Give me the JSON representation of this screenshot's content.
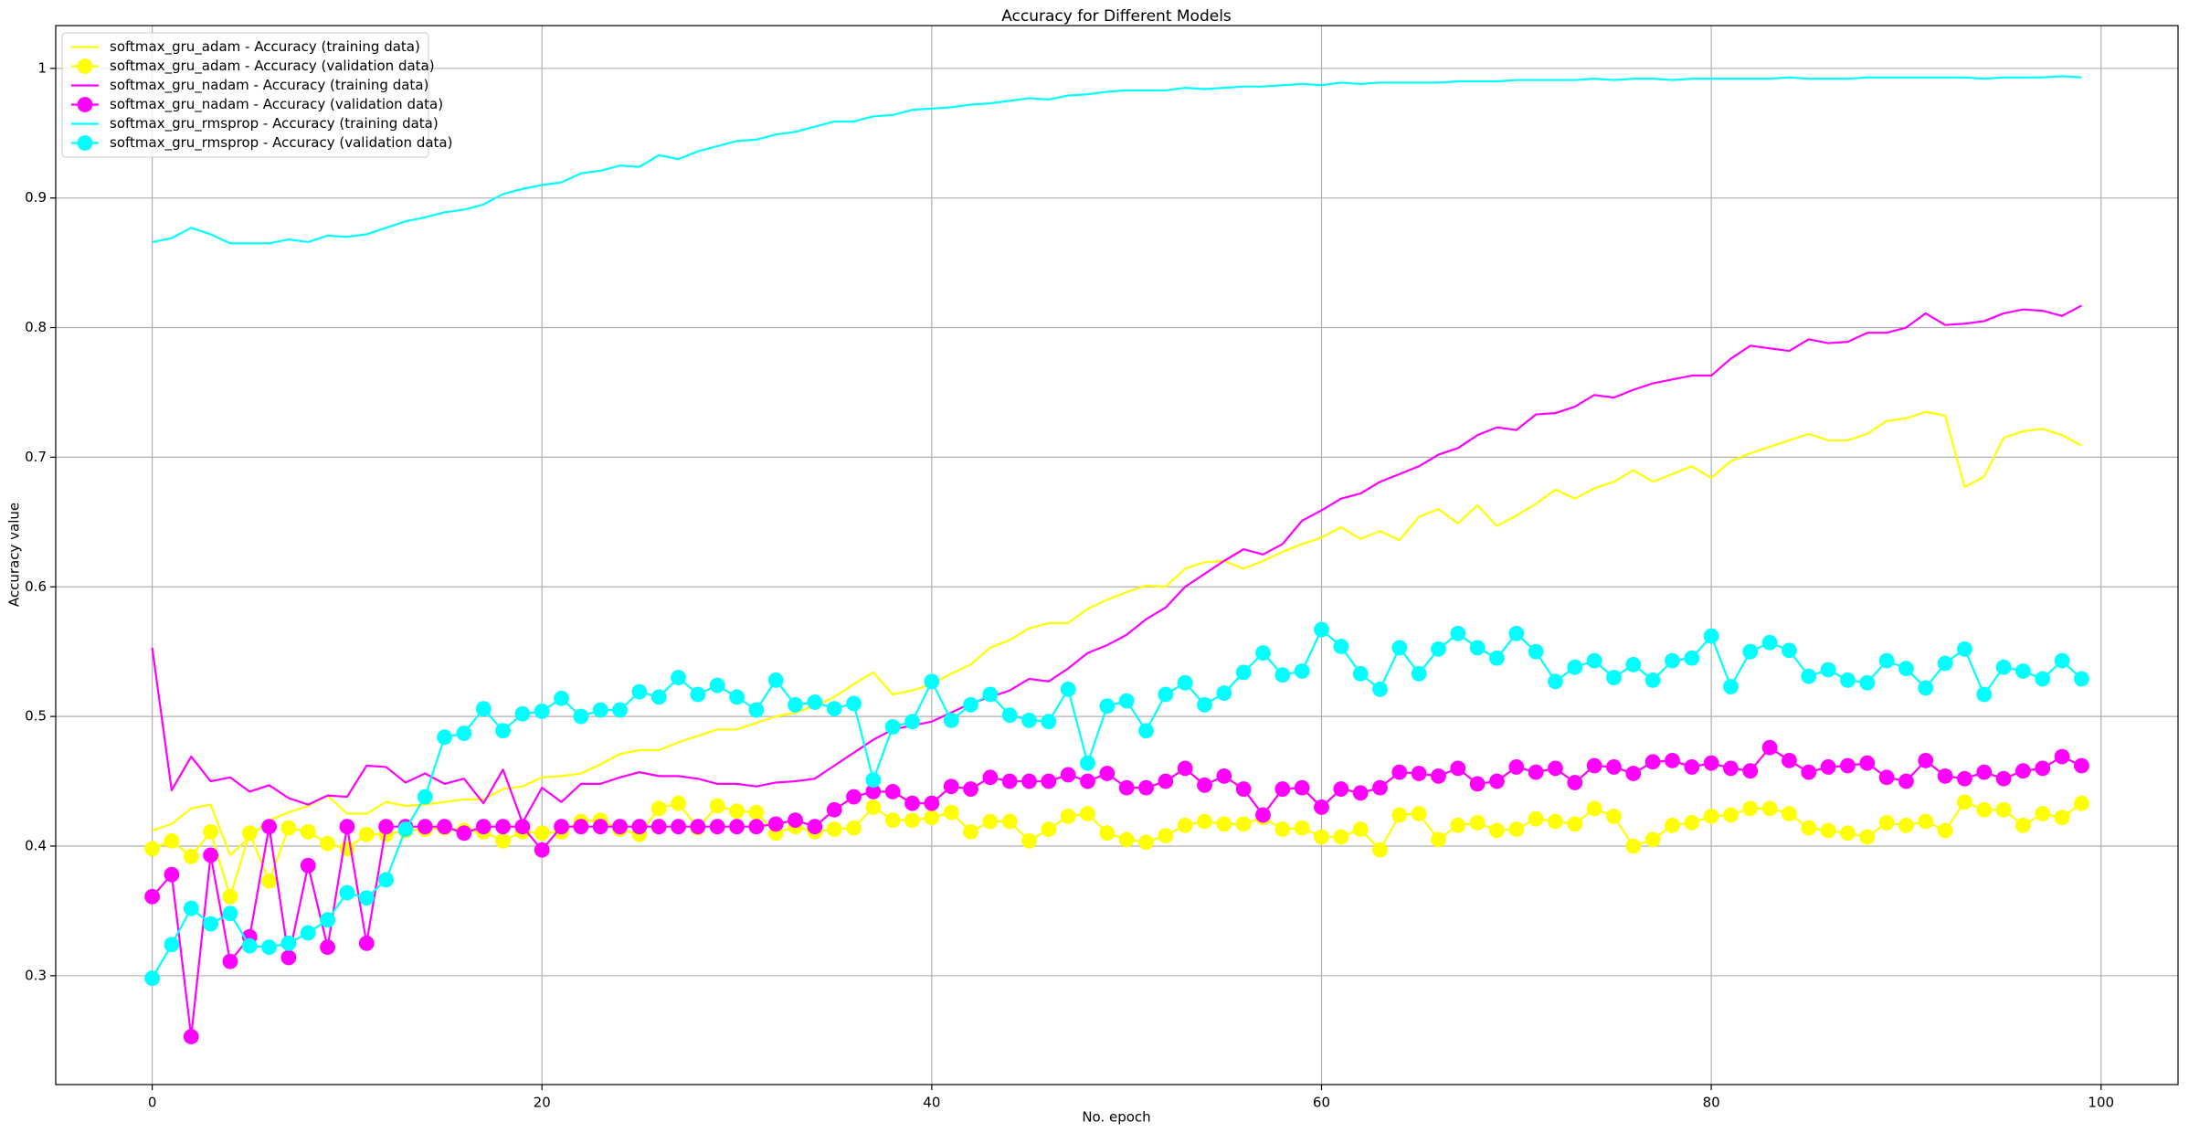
{
  "chart_data": {
    "type": "line",
    "title": "Accuracy for Different Models",
    "xlabel": "No. epoch",
    "ylabel": "Accuracy value",
    "xlim": [
      -4.95,
      103.95
    ],
    "ylim": [
      0.216,
      1.033
    ],
    "xticks": [
      0,
      20,
      40,
      60,
      80,
      100
    ],
    "yticks": [
      0.3,
      0.4,
      0.5,
      0.6,
      0.7,
      0.8,
      0.9,
      1.0
    ],
    "grid": true,
    "legend": "upper left",
    "x": [
      0,
      1,
      2,
      3,
      4,
      5,
      6,
      7,
      8,
      9,
      10,
      11,
      12,
      13,
      14,
      15,
      16,
      17,
      18,
      19,
      20,
      21,
      22,
      23,
      24,
      25,
      26,
      27,
      28,
      29,
      30,
      31,
      32,
      33,
      34,
      35,
      36,
      37,
      38,
      39,
      40,
      41,
      42,
      43,
      44,
      45,
      46,
      47,
      48,
      49,
      50,
      51,
      52,
      53,
      54,
      55,
      56,
      57,
      58,
      59,
      60,
      61,
      62,
      63,
      64,
      65,
      66,
      67,
      68,
      69,
      70,
      71,
      72,
      73,
      74,
      75,
      76,
      77,
      78,
      79,
      80,
      81,
      82,
      83,
      84,
      85,
      86,
      87,
      88,
      89,
      90,
      91,
      92,
      93,
      94,
      95,
      96,
      97,
      98,
      99
    ],
    "series": [
      {
        "name": "softmax_gru_adam - Accuracy (training data)",
        "color": "#ffff00",
        "marker": null,
        "values": [
          0.412,
          0.417,
          0.429,
          0.432,
          0.393,
          0.407,
          0.42,
          0.426,
          0.431,
          0.439,
          0.425,
          0.425,
          0.434,
          0.431,
          0.432,
          0.434,
          0.436,
          0.436,
          0.444,
          0.446,
          0.453,
          0.454,
          0.456,
          0.463,
          0.471,
          0.474,
          0.474,
          0.48,
          0.485,
          0.49,
          0.49,
          0.495,
          0.5,
          0.503,
          0.508,
          0.515,
          0.525,
          0.534,
          0.517,
          0.52,
          0.525,
          0.533,
          0.54,
          0.553,
          0.559,
          0.568,
          0.572,
          0.572,
          0.583,
          0.59,
          0.596,
          0.601,
          0.6,
          0.614,
          0.619,
          0.62,
          0.614,
          0.62,
          0.627,
          0.633,
          0.638,
          0.646,
          0.637,
          0.643,
          0.636,
          0.654,
          0.66,
          0.649,
          0.663,
          0.647,
          0.655,
          0.664,
          0.675,
          0.668,
          0.676,
          0.681,
          0.69,
          0.681,
          0.687,
          0.693,
          0.684,
          0.697,
          0.703,
          0.708,
          0.713,
          0.718,
          0.713,
          0.713,
          0.718,
          0.728,
          0.73,
          0.735,
          0.732,
          0.677,
          0.685,
          0.715,
          0.72,
          0.722,
          0.717,
          0.709
        ]
      },
      {
        "name": "softmax_gru_adam - Accuracy (validation data)",
        "color": "#ffff00",
        "marker": "o",
        "values": [
          0.398,
          0.404,
          0.392,
          0.411,
          0.361,
          0.41,
          0.373,
          0.414,
          0.411,
          0.402,
          0.398,
          0.409,
          0.409,
          0.412,
          0.413,
          0.414,
          0.412,
          0.411,
          0.404,
          0.411,
          0.41,
          0.411,
          0.419,
          0.42,
          0.413,
          0.409,
          0.429,
          0.433,
          0.414,
          0.431,
          0.427,
          0.426,
          0.41,
          0.415,
          0.411,
          0.413,
          0.414,
          0.43,
          0.42,
          0.42,
          0.422,
          0.426,
          0.411,
          0.419,
          0.419,
          0.404,
          0.413,
          0.423,
          0.425,
          0.41,
          0.405,
          0.403,
          0.408,
          0.416,
          0.419,
          0.417,
          0.417,
          0.422,
          0.413,
          0.414,
          0.407,
          0.407,
          0.413,
          0.397,
          0.424,
          0.425,
          0.405,
          0.416,
          0.418,
          0.412,
          0.413,
          0.421,
          0.419,
          0.417,
          0.429,
          0.423,
          0.4,
          0.405,
          0.416,
          0.418,
          0.423,
          0.424,
          0.429,
          0.429,
          0.425,
          0.414,
          0.412,
          0.41,
          0.407,
          0.418,
          0.416,
          0.419,
          0.412,
          0.434,
          0.428,
          0.428,
          0.416,
          0.425,
          0.422,
          0.433
        ]
      },
      {
        "name": "softmax_gru_nadam - Accuracy (training data)",
        "color": "#ff00ff",
        "marker": null,
        "values": [
          0.553,
          0.443,
          0.469,
          0.45,
          0.453,
          0.442,
          0.447,
          0.437,
          0.432,
          0.439,
          0.438,
          0.462,
          0.461,
          0.449,
          0.456,
          0.448,
          0.452,
          0.433,
          0.459,
          0.418,
          0.445,
          0.434,
          0.448,
          0.448,
          0.453,
          0.457,
          0.454,
          0.454,
          0.452,
          0.448,
          0.448,
          0.446,
          0.449,
          0.45,
          0.452,
          0.462,
          0.472,
          0.482,
          0.49,
          0.493,
          0.496,
          0.503,
          0.51,
          0.515,
          0.52,
          0.529,
          0.527,
          0.537,
          0.549,
          0.555,
          0.563,
          0.575,
          0.584,
          0.6,
          0.61,
          0.62,
          0.629,
          0.625,
          0.633,
          0.651,
          0.659,
          0.668,
          0.672,
          0.681,
          0.687,
          0.693,
          0.702,
          0.707,
          0.717,
          0.723,
          0.721,
          0.733,
          0.734,
          0.739,
          0.748,
          0.746,
          0.752,
          0.757,
          0.76,
          0.763,
          0.763,
          0.776,
          0.786,
          0.784,
          0.782,
          0.791,
          0.788,
          0.789,
          0.796,
          0.796,
          0.8,
          0.811,
          0.802,
          0.803,
          0.805,
          0.811,
          0.814,
          0.813,
          0.809,
          0.817
        ]
      },
      {
        "name": "softmax_gru_nadam - Accuracy (validation data)",
        "color": "#ff00ff",
        "marker": "o",
        "values": [
          0.361,
          0.378,
          0.253,
          0.393,
          0.311,
          0.33,
          0.415,
          0.314,
          0.385,
          0.322,
          0.415,
          0.325,
          0.415,
          0.415,
          0.415,
          0.415,
          0.41,
          0.415,
          0.415,
          0.415,
          0.397,
          0.415,
          0.415,
          0.415,
          0.415,
          0.415,
          0.415,
          0.415,
          0.415,
          0.415,
          0.415,
          0.415,
          0.417,
          0.42,
          0.415,
          0.428,
          0.438,
          0.442,
          0.442,
          0.433,
          0.433,
          0.446,
          0.444,
          0.453,
          0.45,
          0.45,
          0.45,
          0.455,
          0.45,
          0.456,
          0.445,
          0.445,
          0.45,
          0.46,
          0.447,
          0.454,
          0.444,
          0.424,
          0.444,
          0.445,
          0.43,
          0.444,
          0.441,
          0.445,
          0.457,
          0.456,
          0.454,
          0.46,
          0.448,
          0.45,
          0.461,
          0.457,
          0.46,
          0.449,
          0.462,
          0.461,
          0.456,
          0.465,
          0.466,
          0.461,
          0.464,
          0.46,
          0.458,
          0.476,
          0.466,
          0.457,
          0.461,
          0.462,
          0.464,
          0.453,
          0.45,
          0.466,
          0.454,
          0.452,
          0.457,
          0.452,
          0.458,
          0.46,
          0.469,
          0.462
        ]
      },
      {
        "name": "softmax_gru_rmsprop - Accuracy (training data)",
        "color": "#00ffff",
        "marker": null,
        "values": [
          0.866,
          0.869,
          0.877,
          0.872,
          0.865,
          0.865,
          0.865,
          0.868,
          0.866,
          0.871,
          0.87,
          0.872,
          0.877,
          0.882,
          0.885,
          0.889,
          0.891,
          0.895,
          0.903,
          0.907,
          0.91,
          0.912,
          0.919,
          0.921,
          0.925,
          0.924,
          0.933,
          0.93,
          0.936,
          0.94,
          0.944,
          0.945,
          0.949,
          0.951,
          0.955,
          0.959,
          0.959,
          0.963,
          0.964,
          0.968,
          0.969,
          0.97,
          0.972,
          0.973,
          0.975,
          0.977,
          0.976,
          0.979,
          0.98,
          0.982,
          0.983,
          0.983,
          0.983,
          0.985,
          0.984,
          0.985,
          0.986,
          0.986,
          0.987,
          0.988,
          0.987,
          0.989,
          0.988,
          0.989,
          0.989,
          0.989,
          0.989,
          0.99,
          0.99,
          0.99,
          0.991,
          0.991,
          0.991,
          0.991,
          0.992,
          0.991,
          0.992,
          0.992,
          0.991,
          0.992,
          0.992,
          0.992,
          0.992,
          0.992,
          0.993,
          0.992,
          0.992,
          0.992,
          0.993,
          0.993,
          0.993,
          0.993,
          0.993,
          0.993,
          0.992,
          0.993,
          0.993,
          0.993,
          0.994,
          0.993
        ]
      },
      {
        "name": "softmax_gru_rmsprop - Accuracy (validation data)",
        "color": "#00ffff",
        "marker": "o",
        "values": [
          0.298,
          0.324,
          0.352,
          0.34,
          0.348,
          0.323,
          0.322,
          0.325,
          0.333,
          0.343,
          0.364,
          0.36,
          0.374,
          0.413,
          0.438,
          0.484,
          0.487,
          0.506,
          0.489,
          0.502,
          0.504,
          0.514,
          0.5,
          0.505,
          0.505,
          0.519,
          0.515,
          0.53,
          0.517,
          0.524,
          0.515,
          0.505,
          0.528,
          0.509,
          0.511,
          0.506,
          0.51,
          0.451,
          0.492,
          0.496,
          0.527,
          0.497,
          0.509,
          0.517,
          0.501,
          0.497,
          0.496,
          0.521,
          0.464,
          0.508,
          0.512,
          0.489,
          0.517,
          0.526,
          0.509,
          0.518,
          0.534,
          0.549,
          0.532,
          0.535,
          0.567,
          0.554,
          0.533,
          0.521,
          0.553,
          0.533,
          0.552,
          0.564,
          0.553,
          0.545,
          0.564,
          0.55,
          0.527,
          0.538,
          0.543,
          0.53,
          0.54,
          0.528,
          0.543,
          0.545,
          0.562,
          0.523,
          0.55,
          0.557,
          0.551,
          0.531,
          0.536,
          0.528,
          0.526,
          0.543,
          0.537,
          0.522,
          0.541,
          0.552,
          0.517,
          0.538,
          0.535,
          0.529,
          0.543,
          0.529
        ]
      }
    ]
  }
}
